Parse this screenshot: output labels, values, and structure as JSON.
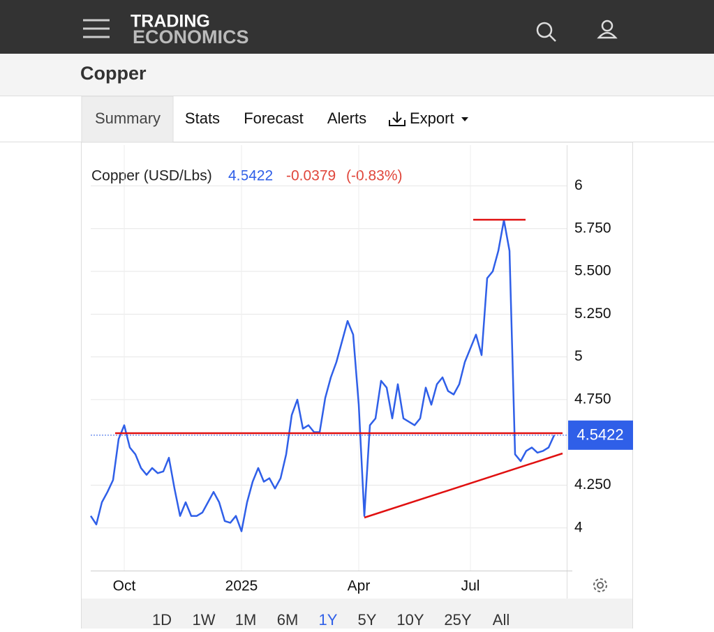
{
  "header": {
    "logo_top": "TRADING",
    "logo_bottom": "ECONOMICS"
  },
  "title": "Copper",
  "tabs": [
    "Summary",
    "Stats",
    "Forecast",
    "Alerts",
    "Export"
  ],
  "ranges": [
    "1D",
    "1W",
    "1M",
    "6M",
    "1Y",
    "5Y",
    "10Y",
    "25Y",
    "All"
  ],
  "active_range": 4,
  "chart_data": {
    "type": "line",
    "title": "Copper (USD/Lbs)",
    "last": 4.5422,
    "change": "-0.0379",
    "change_pct": "(-0.83%)",
    "categories": [
      null,
      null,
      null,
      null,
      null,
      null,
      "Oct",
      null,
      null,
      null,
      null,
      null,
      null,
      null,
      null,
      null,
      null,
      null,
      null,
      null,
      null,
      null,
      null,
      null,
      null,
      null,
      null,
      "2025",
      null,
      null,
      null,
      null,
      null,
      null,
      null,
      null,
      null,
      null,
      null,
      null,
      null,
      null,
      null,
      null,
      null,
      null,
      null,
      null,
      "Apr",
      null,
      null,
      null,
      null,
      null,
      null,
      null,
      null,
      null,
      null,
      null,
      null,
      null,
      null,
      null,
      null,
      null,
      null,
      null,
      "Jul",
      null,
      null,
      null,
      null,
      null,
      null,
      null,
      null,
      null,
      null,
      null,
      null,
      null,
      null,
      null
    ],
    "series": [
      {
        "name": "Copper",
        "color": "#2f5fe8",
        "values": [
          4.07,
          4.02,
          4.15,
          4.21,
          4.28,
          4.52,
          4.6,
          4.47,
          4.43,
          4.35,
          4.31,
          4.35,
          4.32,
          4.33,
          4.41,
          4.23,
          4.07,
          4.15,
          4.07,
          4.07,
          4.09,
          4.15,
          4.21,
          4.15,
          4.04,
          4.03,
          4.07,
          3.98,
          4.15,
          4.27,
          4.35,
          4.27,
          4.29,
          4.23,
          4.29,
          4.43,
          4.66,
          4.75,
          4.58,
          4.6,
          4.56,
          4.56,
          4.76,
          4.88,
          4.97,
          5.09,
          5.21,
          5.13,
          4.72,
          4.07,
          4.6,
          4.64,
          4.86,
          4.82,
          4.64,
          4.84,
          4.64,
          4.62,
          4.6,
          4.64,
          4.82,
          4.72,
          4.84,
          4.88,
          4.8,
          4.78,
          4.84,
          4.97,
          5.05,
          5.13,
          5.01,
          5.46,
          5.5,
          5.62,
          5.8,
          5.62,
          4.43,
          4.39,
          4.45,
          4.47,
          4.44,
          4.45,
          4.47,
          4.5422
        ]
      }
    ],
    "ylim": [
      3.75,
      6.21
    ],
    "yticks": [
      4,
      {
        "value": 4.25,
        "label": "4.250"
      },
      {
        "value": 4.75,
        "label": "4.750"
      },
      5,
      {
        "value": 5.25,
        "label": "5.250"
      },
      {
        "value": 5.5,
        "label": "5.500"
      },
      {
        "value": 5.75,
        "label": "5.750"
      },
      6
    ],
    "grid": true
  }
}
